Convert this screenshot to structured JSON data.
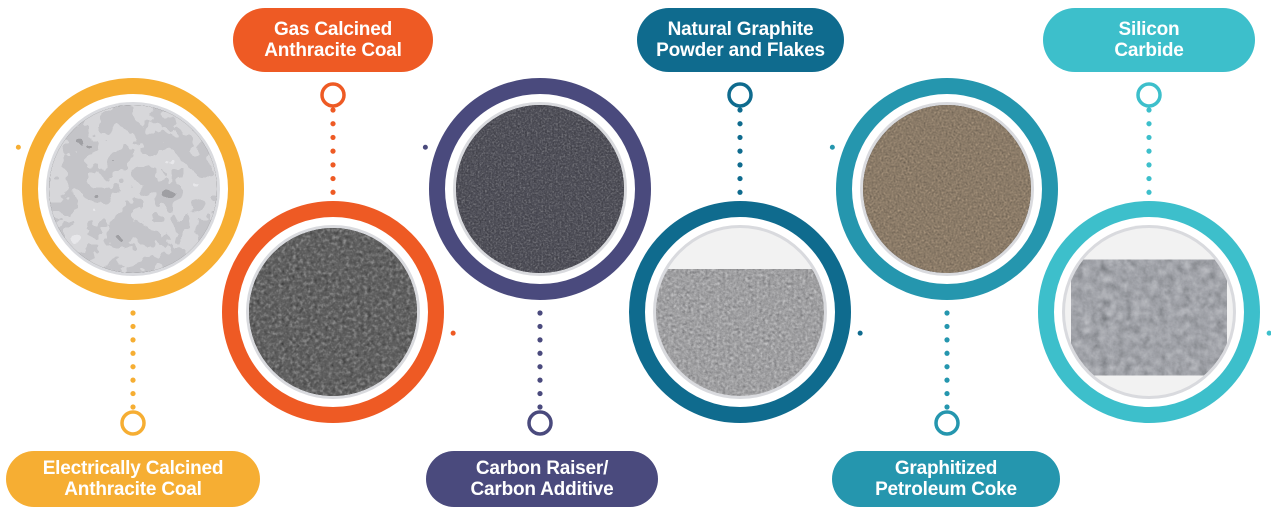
{
  "products": [
    {
      "id": "electrically-calcined-anthracite-coal",
      "line1": "Electrically Calcined",
      "line2": "Anthracite Coal",
      "color": "#F6AE33",
      "texture": "lumps"
    },
    {
      "id": "gas-calcined-anthracite-coal",
      "line1": "Gas Calcined",
      "line2": "Anthracite Coal",
      "color": "#EE5A24",
      "texture": "granules"
    },
    {
      "id": "carbon-raiser-carbon-additive",
      "line1": "Carbon Raiser/",
      "line2": "Carbon Additive",
      "color": "#4A4A7D",
      "texture": "fine-black"
    },
    {
      "id": "natural-graphite-powder-and-flakes",
      "line1": "Natural Graphite",
      "line2": "Powder and Flakes",
      "color": "#0F6B8E",
      "texture": "powder-pile"
    },
    {
      "id": "graphitized-petroleum-coke",
      "line1": "Graphitized",
      "line2": "Petroleum Coke",
      "color": "#2596AE",
      "texture": "fine-brown"
    },
    {
      "id": "silicon-carbide",
      "line1": "Silicon",
      "line2": "Carbide",
      "color": "#3DBFCB",
      "texture": "rock"
    }
  ]
}
